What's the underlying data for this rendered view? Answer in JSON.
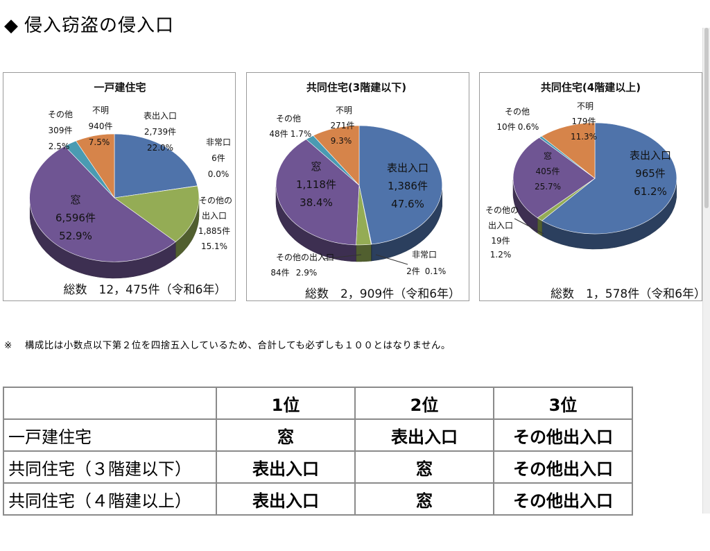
{
  "heading": {
    "mark": "◆",
    "title": "侵入窃盗の侵入口"
  },
  "chart_data": [
    {
      "type": "pie",
      "title": "一戸建住宅",
      "total": "総数　12，475件（令和6年）",
      "slices": [
        {
          "name": "表出入口",
          "count": "2,739件",
          "percent": "22.0%",
          "value": 22.0,
          "color": "#4f73aa"
        },
        {
          "name": "非常口",
          "count": "6件",
          "percent": "0.0%",
          "value": 0.05,
          "color": "#2f4a8a"
        },
        {
          "name": "その他の出入口",
          "count": "1,885件",
          "percent": "15.1%",
          "value": 15.1,
          "color": "#94ac55"
        },
        {
          "name": "窓",
          "count": "6,596件",
          "percent": "52.9%",
          "value": 52.9,
          "color": "#6f5593"
        },
        {
          "name": "その他",
          "count": "309件",
          "percent": "2.5%",
          "value": 2.5,
          "color": "#4a9bb2"
        },
        {
          "name": "不明",
          "count": "940件",
          "percent": "7.5%",
          "value": 7.5,
          "color": "#d6844a"
        }
      ]
    },
    {
      "type": "pie",
      "title": "共同住宅(3階建以下)",
      "total": "総数　2，909件（令和6年）",
      "slices": [
        {
          "name": "表出入口",
          "count": "1,386件",
          "percent": "47.6%",
          "value": 47.6,
          "color": "#4f73aa"
        },
        {
          "name": "非常口",
          "count": "2件",
          "percent": "0.1%",
          "value": 0.1,
          "color": "#2f4a8a"
        },
        {
          "name": "その他の出入口",
          "count": "84件",
          "percent": "2.9%",
          "value": 2.9,
          "color": "#94ac55"
        },
        {
          "name": "窓",
          "count": "1,118件",
          "percent": "38.4%",
          "value": 38.4,
          "color": "#6f5593"
        },
        {
          "name": "その他",
          "count": "48件",
          "percent": "1.7%",
          "value": 1.7,
          "color": "#4a9bb2"
        },
        {
          "name": "不明",
          "count": "271件",
          "percent": "9.3%",
          "value": 9.3,
          "color": "#d6844a"
        }
      ]
    },
    {
      "type": "pie",
      "title": "共同住宅(4階建以上)",
      "total": "総数　1，578件（令和6年）",
      "slices": [
        {
          "name": "表出入口",
          "count": "965件",
          "percent": "61.2%",
          "value": 61.2,
          "color": "#4f73aa"
        },
        {
          "name": "その他の出入口",
          "count": "19件",
          "percent": "1.2%",
          "value": 1.2,
          "color": "#94ac55"
        },
        {
          "name": "窓",
          "count": "405件",
          "percent": "25.7%",
          "value": 25.7,
          "color": "#6f5593"
        },
        {
          "name": "その他",
          "count": "10件",
          "percent": "0.6%",
          "value": 0.6,
          "color": "#4a9bb2"
        },
        {
          "name": "不明",
          "count": "179件",
          "percent": "11.3%",
          "value": 11.3,
          "color": "#d6844a"
        }
      ]
    }
  ],
  "note": {
    "mark": "※",
    "text": "構成比は小数点以下第２位を四捨五入しているため、合計しても必ずしも１００とはなりません。"
  },
  "ranking": {
    "headers": [
      "",
      "1位",
      "2位",
      "3位"
    ],
    "rows": [
      {
        "label": "一戸建住宅",
        "values": [
          "窓",
          "表出入口",
          "その他出入口"
        ]
      },
      {
        "label": "共同住宅（３階建以下）",
        "values": [
          "表出入口",
          "窓",
          "その他出入口"
        ]
      },
      {
        "label": "共同住宅（４階建以上）",
        "values": [
          "表出入口",
          "窓",
          "その他出入口"
        ]
      }
    ]
  }
}
